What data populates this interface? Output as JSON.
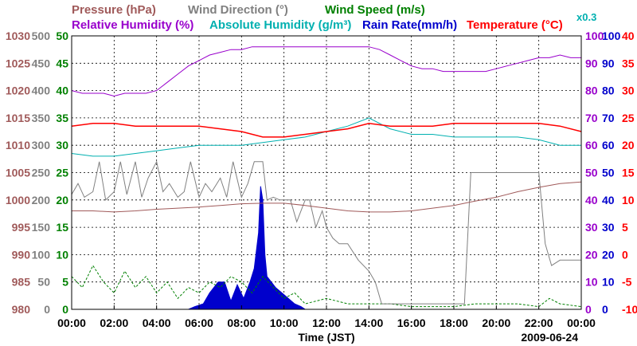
{
  "colors": {
    "pressure": "#a05a5a",
    "wind_direction": "#808080",
    "wind_speed": "#008000",
    "humidity": "#9900cc",
    "abs_humidity": "#00b0b0",
    "rain": "#0000cc",
    "temperature": "#ff0000"
  },
  "chart_data": {
    "type": "line",
    "grid": true,
    "date": "2009-06-24",
    "xlabel": "Time (JST)",
    "x_ticks": [
      "00:00",
      "02:00",
      "04:00",
      "06:00",
      "08:00",
      "10:00",
      "12:00",
      "14:00",
      "16:00",
      "18:00",
      "20:00",
      "22:00",
      "00:00"
    ],
    "xlim_hours": [
      0,
      24
    ],
    "legend": [
      {
        "key": "pressure",
        "label": "Pressure (hPa)"
      },
      {
        "key": "wind_direction",
        "label": "Wind Direction (°)"
      },
      {
        "key": "wind_speed",
        "label": "Wind Speed (m/s)"
      },
      {
        "key": "humidity",
        "label": "Relative Humidity (%)"
      },
      {
        "key": "abs_humidity",
        "label": "Absolute Humidity (g/m³)"
      },
      {
        "key": "abs_humidity_scale",
        "label": "x0.3"
      },
      {
        "key": "rain",
        "label": "Rain Rate(mm/h)"
      },
      {
        "key": "temperature",
        "label": "Temperature (°C)"
      }
    ],
    "axes": {
      "pressure": {
        "ticks": [
          "980",
          "985",
          "990",
          "995",
          "1000",
          "1005",
          "1010",
          "1015",
          "1020",
          "1025",
          "1030"
        ],
        "range": [
          980,
          1030
        ]
      },
      "wind_direction": {
        "ticks": [
          "0",
          "50",
          "100",
          "150",
          "200",
          "250",
          "300",
          "350",
          "400",
          "450",
          "500"
        ],
        "range": [
          0,
          500
        ]
      },
      "wind_speed": {
        "ticks": [
          "0",
          "5",
          "10",
          "15",
          "20",
          "25",
          "30",
          "35",
          "40",
          "45",
          "50"
        ],
        "range": [
          0,
          50
        ]
      },
      "humidity": {
        "ticks": [
          "0",
          "10",
          "20",
          "30",
          "40",
          "50",
          "60",
          "70",
          "80",
          "90",
          "100"
        ],
        "range": [
          0,
          100
        ]
      },
      "rain": {
        "ticks": [
          "0",
          "10",
          "20",
          "30",
          "40",
          "50",
          "60",
          "70",
          "80",
          "90",
          "100"
        ],
        "range": [
          0,
          100
        ]
      },
      "temperature": {
        "ticks": [
          "-10",
          "-5",
          "0",
          "5",
          "10",
          "15",
          "20",
          "25",
          "30",
          "35",
          "40"
        ],
        "range": [
          -10,
          40
        ]
      }
    },
    "series": [
      {
        "key": "humidity",
        "axis": "humidity",
        "x": [
          0,
          0.5,
          1,
          1.5,
          2,
          2.5,
          3,
          3.5,
          4,
          4.5,
          5,
          5.5,
          6,
          6.5,
          7,
          7.5,
          8,
          8.5,
          9,
          10,
          11,
          12,
          13,
          14,
          14.5,
          15,
          15.5,
          16,
          16.5,
          17,
          17.5,
          18,
          18.5,
          19,
          19.5,
          20,
          20.5,
          21,
          21.5,
          22,
          22.5,
          23,
          23.5,
          24
        ],
        "y": [
          80,
          79,
          79,
          79,
          78,
          79,
          79,
          79,
          80,
          83,
          86,
          89,
          91,
          93,
          94,
          95,
          95,
          96,
          96,
          96,
          96,
          96,
          96,
          96,
          95,
          93,
          91,
          89,
          88,
          88,
          87,
          87,
          87,
          87,
          87,
          88,
          89,
          90,
          91,
          92,
          92,
          93,
          92,
          92
        ]
      },
      {
        "key": "temperature",
        "axis": "temperature",
        "x": [
          0,
          1,
          2,
          3,
          4,
          5,
          6,
          7,
          8,
          9,
          10,
          11,
          12,
          13,
          14,
          15,
          16,
          17,
          18,
          19,
          20,
          21,
          22,
          23,
          24
        ],
        "y": [
          23.5,
          24,
          24,
          23.5,
          23.5,
          23.5,
          23.5,
          23,
          22.5,
          21.5,
          21.5,
          22,
          22.5,
          23,
          24,
          23.5,
          23.5,
          23.5,
          24,
          24,
          24,
          24,
          24,
          23.5,
          22.5
        ]
      },
      {
        "key": "abs_humidity",
        "axis": "temperature",
        "x": [
          0,
          1,
          2,
          3,
          4,
          5,
          6,
          7,
          8,
          9,
          10,
          11,
          12,
          13,
          14,
          15,
          16,
          17,
          18,
          19,
          20,
          21,
          22,
          23,
          24
        ],
        "y": [
          18.5,
          18,
          18,
          18.5,
          19,
          19.5,
          20,
          20,
          20,
          20.5,
          21,
          21.5,
          22.5,
          23.5,
          25,
          23,
          22,
          22,
          21.5,
          21.5,
          21.5,
          21.5,
          21,
          20,
          20
        ]
      },
      {
        "key": "pressure",
        "axis": "pressure",
        "x": [
          0,
          1,
          2,
          3,
          4,
          5,
          6,
          7,
          8,
          9,
          10,
          11,
          12,
          13,
          14,
          15,
          16,
          17,
          18,
          19,
          20,
          21,
          22,
          23,
          24
        ],
        "y": [
          998,
          998,
          997.8,
          998,
          998.3,
          998.5,
          998.7,
          999,
          999.3,
          999.4,
          999.4,
          999,
          998.5,
          998,
          997.8,
          997.8,
          998,
          998.5,
          999,
          999.8,
          1000.5,
          1001.5,
          1002.3,
          1003,
          1003.3
        ]
      },
      {
        "key": "wind_direction",
        "axis": "wind_direction",
        "x": [
          0,
          0.3,
          0.6,
          1,
          1.3,
          1.6,
          2,
          2.3,
          2.6,
          3,
          3.3,
          3.6,
          4,
          4.3,
          4.6,
          5,
          5.3,
          5.6,
          6,
          6.3,
          6.6,
          7,
          7.3,
          7.6,
          8,
          8.3,
          8.6,
          9,
          9.2,
          9.5,
          9.8,
          10,
          10.3,
          10.6,
          11,
          11.2,
          11.5,
          11.8,
          12,
          12.3,
          12.6,
          13,
          13.5,
          14,
          14.3,
          14.6,
          15,
          16,
          17,
          17.5,
          18,
          18.5,
          18.8,
          19,
          20,
          21,
          22,
          22.3,
          22.6,
          23,
          23.5,
          24
        ],
        "y": [
          210,
          230,
          205,
          215,
          270,
          200,
          215,
          270,
          210,
          270,
          205,
          240,
          270,
          215,
          230,
          205,
          215,
          270,
          205,
          230,
          215,
          240,
          205,
          270,
          205,
          230,
          270,
          270,
          200,
          205,
          200,
          200,
          200,
          160,
          200,
          200,
          150,
          180,
          150,
          130,
          120,
          120,
          90,
          70,
          50,
          10,
          10,
          10,
          10,
          10,
          10,
          10,
          250,
          250,
          250,
          250,
          250,
          120,
          80,
          90,
          90,
          90
        ]
      },
      {
        "key": "wind_speed",
        "axis": "wind_speed",
        "x": [
          0,
          0.5,
          1,
          1.5,
          2,
          2.5,
          3,
          3.5,
          4,
          4.5,
          5,
          5.5,
          6,
          6.5,
          7,
          7.5,
          8,
          8.5,
          9,
          9.5,
          10,
          10.5,
          11,
          12,
          13,
          14,
          15,
          16,
          17,
          18,
          19,
          20,
          21,
          22,
          22.5,
          23,
          24
        ],
        "y": [
          6,
          4,
          8,
          5,
          3,
          7,
          4,
          6,
          3,
          5,
          2,
          4,
          3,
          5,
          4,
          6,
          5,
          3,
          6,
          4,
          2,
          3,
          1,
          2,
          1,
          1,
          1,
          0.5,
          0.5,
          0.5,
          1,
          1,
          1,
          0.5,
          2,
          1,
          0.5
        ]
      },
      {
        "key": "rain",
        "axis": "rain",
        "x": [
          0,
          5.5,
          5.8,
          6.2,
          6.5,
          6.9,
          7.2,
          7.5,
          7.8,
          8.1,
          8.4,
          8.6,
          8.8,
          8.9,
          9,
          9.1,
          9.2,
          9.4,
          9.6,
          9.9,
          10.2,
          10.5,
          10.8,
          11,
          24
        ],
        "y": [
          0,
          0,
          1,
          2,
          6,
          10,
          10,
          3,
          9,
          4,
          10,
          15,
          28,
          45,
          40,
          20,
          12,
          10,
          8,
          6,
          4,
          2,
          1,
          0,
          0
        ]
      }
    ]
  }
}
